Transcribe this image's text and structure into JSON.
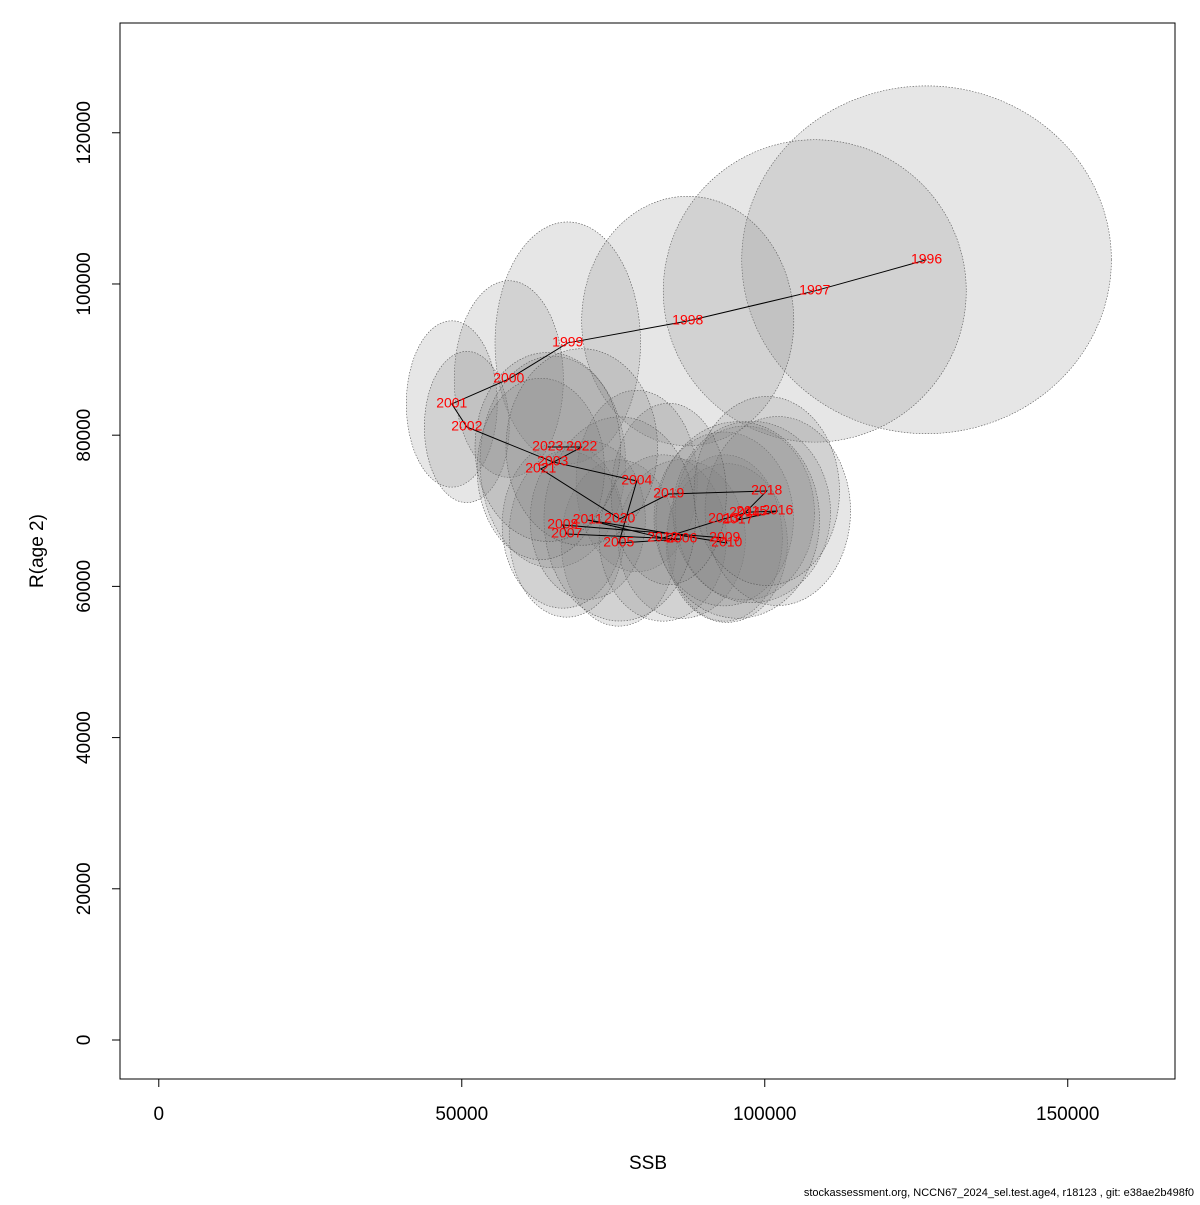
{
  "chart_data": {
    "type": "scatter",
    "xlabel": "SSB",
    "ylabel": "R(age 2)",
    "footer": "stockassessment.org, NCCN67_2024_sel.test.age4, r18123 , git: e38ae2b498f0",
    "xlim": [
      -6400,
      167700
    ],
    "ylim": [
      -5160,
      134520
    ],
    "xticks": [
      0,
      50000,
      100000,
      150000
    ],
    "yticks": [
      0,
      20000,
      40000,
      60000,
      80000,
      100000,
      120000
    ],
    "point_labels": [
      "1996",
      "1997",
      "1998",
      "1999",
      "2000",
      "2001",
      "2002",
      "2003",
      "2004",
      "2005",
      "2006",
      "2007",
      "2008",
      "2009",
      "2010",
      "2011",
      "2012",
      "2013",
      "2014",
      "2015",
      "2016",
      "2017",
      "2018",
      "2019",
      "2020",
      "2021",
      "2022",
      "2023"
    ],
    "x": [
      126700,
      108250,
      87290,
      67490,
      57760,
      48350,
      50830,
      65020,
      78880,
      75910,
      86300,
      67330,
      66670,
      93400,
      93730,
      70790,
      83170,
      93230,
      96700,
      97850,
      102150,
      95540,
      100330,
      84160,
      76070,
      63040,
      69800,
      64190
    ],
    "series": [
      {
        "values": [
          103200,
          99080,
          95100,
          92200,
          87430,
          84130,
          81080,
          76460,
          73940,
          65740,
          66270,
          66930,
          68120,
          66400,
          65740,
          68780,
          66400,
          68920,
          69710,
          69840,
          69970,
          68780,
          72620,
          72220,
          68920,
          75530,
          78440,
          78440
        ]
      }
    ],
    "ellipse_rx": [
      30500,
      25000,
      17500,
      12000,
      9000,
      7500,
      7000,
      12000,
      10000,
      9500,
      10500,
      9500,
      10000,
      9500,
      10000,
      9500,
      10500,
      11500,
      11500,
      13000,
      12000,
      13500,
      12000,
      9500,
      12500,
      10500,
      12500,
      12000
    ],
    "ellipse_ry": [
      23000,
      20000,
      16500,
      16000,
      13000,
      11000,
      10000,
      14000,
      12000,
      11000,
      10500,
      11000,
      11000,
      11000,
      10500,
      10500,
      11000,
      11500,
      11500,
      12000,
      12500,
      13000,
      12500,
      12000,
      13500,
      12000,
      13000,
      12500
    ],
    "ellipse_color": "#808080",
    "label_color": "#ff0000",
    "line_color": "#000000"
  }
}
